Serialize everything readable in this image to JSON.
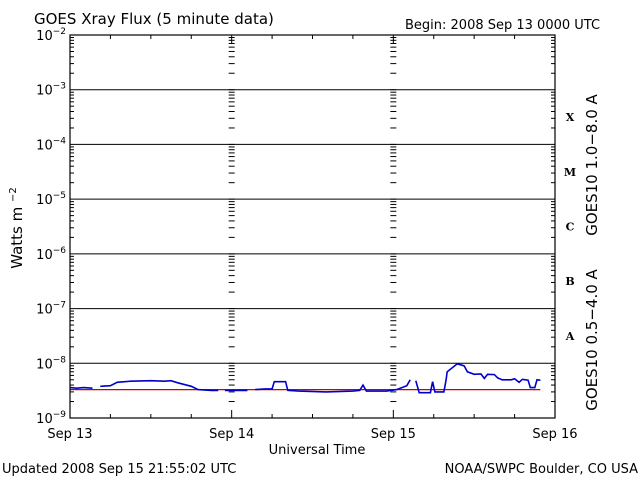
{
  "header": {
    "title": "GOES Xray Flux (5 minute data)",
    "begin": "Begin:  2008 Sep 13 0000 UTC"
  },
  "footer": {
    "updated": "Updated 2008 Sep 15 21:55:02 UTC",
    "credit": "NOAA/SWPC Boulder, CO USA"
  },
  "colors": {
    "long_channel": "#cc0000",
    "short_channel": "#0000cc",
    "axis": "#000000"
  },
  "chart_data": {
    "type": "line",
    "title": "GOES Xray Flux (5 minute data)",
    "xlabel": "Universal Time",
    "ylabel": "Watts m-2",
    "yscale": "log",
    "ylim": [
      1e-09,
      0.01
    ],
    "xlim": [
      "2008-09-13T00:00",
      "2008-09-16T00:00"
    ],
    "x_ticks": [
      "Sep 13",
      "Sep 14",
      "Sep 15",
      "Sep 16"
    ],
    "y_ticks": [
      {
        "value": 0.01,
        "base": "10",
        "exp": "−2"
      },
      {
        "value": 0.001,
        "base": "10",
        "exp": "−3"
      },
      {
        "value": 0.0001,
        "base": "10",
        "exp": "−4"
      },
      {
        "value": 1e-05,
        "base": "10",
        "exp": "−5"
      },
      {
        "value": 1e-06,
        "base": "10",
        "exp": "−6"
      },
      {
        "value": 1e-07,
        "base": "10",
        "exp": "−7"
      },
      {
        "value": 1e-08,
        "base": "10",
        "exp": "−8"
      },
      {
        "value": 1e-09,
        "base": "10",
        "exp": "−9"
      }
    ],
    "flare_classes": [
      {
        "label": "X",
        "lo": 0.0001,
        "hi": 0.001
      },
      {
        "label": "M",
        "lo": 1e-05,
        "hi": 0.0001
      },
      {
        "label": "C",
        "lo": 1e-06,
        "hi": 1e-05
      },
      {
        "label": "B",
        "lo": 1e-07,
        "hi": 1e-06
      },
      {
        "label": "A",
        "lo": 1e-08,
        "hi": 1e-07
      }
    ],
    "grid": "horizontal lines at decades, dashed vertical day separators",
    "series": [
      {
        "name": "GOES10 1.0−8.0 A",
        "color": "#cc0000",
        "points": [
          [
            "2008-09-13T00:00",
            3.3e-09
          ],
          [
            "2008-09-13T06:00",
            3.3e-09
          ],
          [
            "2008-09-13T12:00",
            3.3e-09
          ],
          [
            "2008-09-13T18:00",
            3.3e-09
          ],
          [
            "2008-09-14T00:00",
            3.3e-09
          ],
          [
            "2008-09-14T06:00",
            3.3e-09
          ],
          [
            "2008-09-14T12:00",
            3.3e-09
          ],
          [
            "2008-09-14T18:00",
            3.3e-09
          ],
          [
            "2008-09-15T00:00",
            3.3e-09
          ],
          [
            "2008-09-15T06:00",
            3.3e-09
          ],
          [
            "2008-09-15T12:00",
            3.3e-09
          ],
          [
            "2008-09-15T18:00",
            3.3e-09
          ],
          [
            "2008-09-15T21:50",
            3.3e-09
          ]
        ]
      },
      {
        "name": "GOES10 0.5−4.0 A",
        "color": "#0000cc",
        "segments": [
          [
            [
              "2008-09-13T00:00",
              3.6e-09
            ],
            [
              "2008-09-13T01:00",
              3.5e-09
            ],
            [
              "2008-09-13T02:00",
              3.6e-09
            ],
            [
              "2008-09-13T03:20",
              3.5e-09
            ]
          ],
          [
            [
              "2008-09-13T04:30",
              3.8e-09
            ],
            [
              "2008-09-13T06:00",
              3.9e-09
            ],
            [
              "2008-09-13T07:00",
              4.5e-09
            ],
            [
              "2008-09-13T09:00",
              4.7e-09
            ],
            [
              "2008-09-13T12:00",
              4.8e-09
            ],
            [
              "2008-09-13T14:00",
              4.7e-09
            ],
            [
              "2008-09-13T15:00",
              4.8e-09
            ],
            [
              "2008-09-13T16:00",
              4.4e-09
            ],
            [
              "2008-09-13T18:00",
              3.8e-09
            ],
            [
              "2008-09-13T19:00",
              3.3e-09
            ],
            [
              "2008-09-13T21:00",
              3.2e-09
            ],
            [
              "2008-09-13T22:00",
              3.2e-09
            ]
          ],
          [
            [
              "2008-09-13T23:00",
              3.2e-09
            ],
            [
              "2008-09-14T00:30",
              3.2e-09
            ],
            [
              "2008-09-14T02:20",
              3.2e-09
            ]
          ],
          [
            [
              "2008-09-14T03:30",
              3.3e-09
            ],
            [
              "2008-09-14T05:00",
              3.4e-09
            ],
            [
              "2008-09-14T06:00",
              3.4e-09
            ],
            [
              "2008-09-14T06:20",
              4.6e-09
            ],
            [
              "2008-09-14T08:00",
              4.6e-09
            ],
            [
              "2008-09-14T08:20",
              3.2e-09
            ],
            [
              "2008-09-14T10:00",
              3.1e-09
            ],
            [
              "2008-09-14T14:00",
              3e-09
            ],
            [
              "2008-09-14T18:00",
              3.1e-09
            ],
            [
              "2008-09-14T19:00",
              3.2e-09
            ],
            [
              "2008-09-14T19:30",
              4e-09
            ],
            [
              "2008-09-14T20:00",
              3.1e-09
            ],
            [
              "2008-09-14T23:00",
              3.1e-09
            ],
            [
              "2008-09-15T00:30",
              3.3e-09
            ],
            [
              "2008-09-15T02:00",
              3.9e-09
            ],
            [
              "2008-09-15T02:30",
              5e-09
            ]
          ],
          [
            [
              "2008-09-15T03:20",
              4.8e-09
            ],
            [
              "2008-09-15T03:50",
              2.9e-09
            ],
            [
              "2008-09-15T05:30",
              2.9e-09
            ],
            [
              "2008-09-15T05:50",
              4.6e-09
            ],
            [
              "2008-09-15T06:10",
              3e-09
            ],
            [
              "2008-09-15T07:30",
              3e-09
            ],
            [
              "2008-09-15T07:50",
              5e-09
            ],
            [
              "2008-09-15T08:00",
              7e-09
            ],
            [
              "2008-09-15T09:30",
              9.8e-09
            ],
            [
              "2008-09-15T10:30",
              9e-09
            ],
            [
              "2008-09-15T11:00",
              7e-09
            ],
            [
              "2008-09-15T12:00",
              6.3e-09
            ],
            [
              "2008-09-15T13:00",
              6.4e-09
            ],
            [
              "2008-09-15T13:30",
              5.3e-09
            ],
            [
              "2008-09-15T14:00",
              6.3e-09
            ],
            [
              "2008-09-15T15:00",
              6.2e-09
            ],
            [
              "2008-09-15T15:30",
              5.4e-09
            ],
            [
              "2008-09-15T16:10",
              5e-09
            ],
            [
              "2008-09-15T17:30",
              5e-09
            ],
            [
              "2008-09-15T18:00",
              5.2e-09
            ],
            [
              "2008-09-15T18:40",
              4.5e-09
            ],
            [
              "2008-09-15T19:10",
              5.1e-09
            ],
            [
              "2008-09-15T20:00",
              4.9e-09
            ],
            [
              "2008-09-15T20:20",
              3.6e-09
            ],
            [
              "2008-09-15T21:00",
              3.6e-09
            ],
            [
              "2008-09-15T21:20",
              5e-09
            ],
            [
              "2008-09-15T21:50",
              4.9e-09
            ]
          ]
        ]
      }
    ]
  }
}
